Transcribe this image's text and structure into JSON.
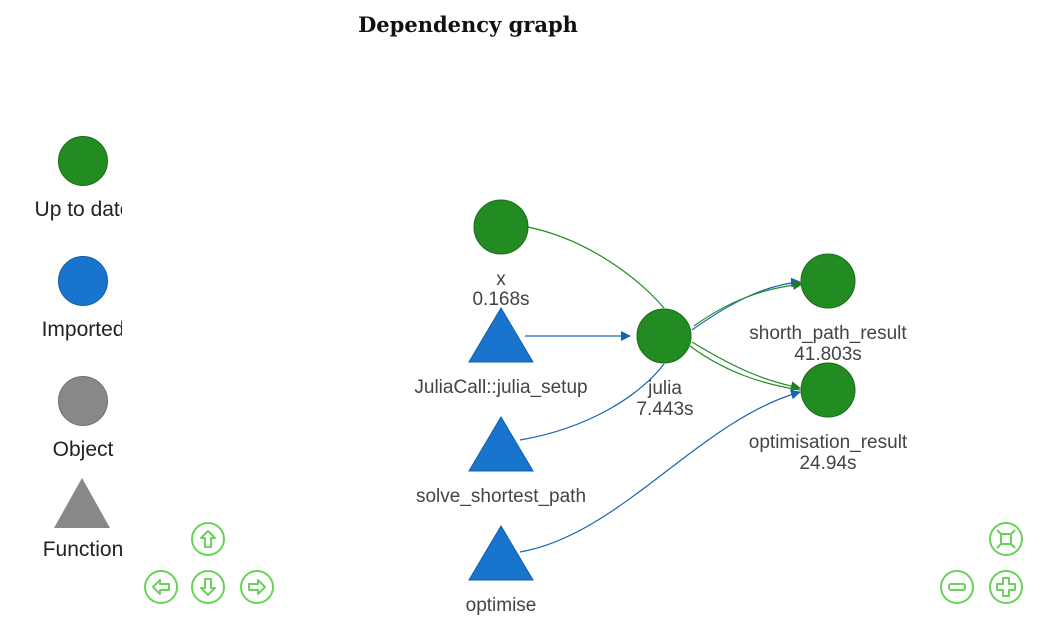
{
  "title": "Dependency graph",
  "legend": [
    {
      "label": "Up to date",
      "shape": "circle",
      "color": "#228b22"
    },
    {
      "label": "Imported",
      "shape": "circle",
      "color": "#1874cd"
    },
    {
      "label": "Object",
      "shape": "circle",
      "color": "#888888"
    },
    {
      "label": "Function",
      "shape": "triangle",
      "color": "#888888"
    }
  ],
  "nodes": {
    "x": {
      "name": "x",
      "time": "0.168s",
      "status": "Up to date"
    },
    "julia_setup": {
      "name": "JuliaCall::julia_setup",
      "status": "Imported",
      "type": "Function"
    },
    "solve_shortest_path": {
      "name": "solve_shortest_path",
      "status": "Imported",
      "type": "Function"
    },
    "optimise": {
      "name": "optimise",
      "status": "Imported",
      "type": "Function"
    },
    "julia": {
      "name": "julia",
      "time": "7.443s",
      "status": "Up to date"
    },
    "shorth_path_result": {
      "name": "shorth_path_result",
      "time": "41.803s",
      "status": "Up to date"
    },
    "optimisation_result": {
      "name": "optimisation_result",
      "time": "24.94s",
      "status": "Up to date"
    }
  },
  "edges": [
    {
      "from": "x",
      "to": "julia"
    },
    {
      "from": "JuliaCall::julia_setup",
      "to": "julia"
    },
    {
      "from": "solve_shortest_path",
      "to": "julia"
    },
    {
      "from": "julia",
      "to": "shorth_path_result"
    },
    {
      "from": "julia",
      "to": "optimisation_result"
    },
    {
      "from": "optimise",
      "to": "optimisation_result"
    }
  ],
  "colors": {
    "up_to_date": "#228b22",
    "imported": "#1874cd",
    "object": "#888888",
    "controls": "#6ad15a"
  },
  "controls": [
    "up",
    "down",
    "left",
    "right",
    "zoom-in",
    "zoom-out",
    "fit"
  ]
}
